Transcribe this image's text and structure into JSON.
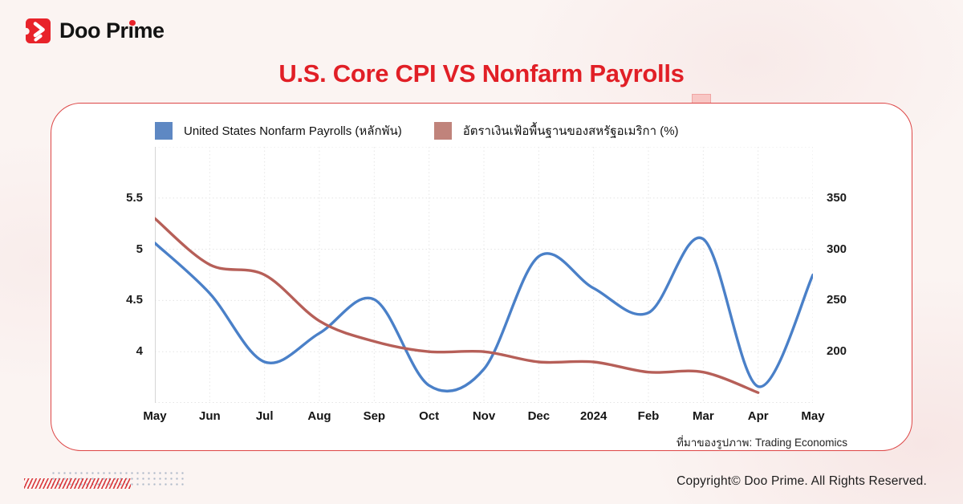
{
  "brand": {
    "name": "Doo Prime"
  },
  "page_title": "U.S. Core CPI  VS Nonfarm Payrolls",
  "theme": {
    "accent_red": "#e11f26",
    "card_border": "#dd4646",
    "tab_pink": "#f8c6c4",
    "nonfarm_blue": "#4a80c8",
    "cpi_red": "#b65f58"
  },
  "legend": {
    "items": [
      {
        "label": "United States Nonfarm Payrolls (หลักพัน)",
        "color": "#5e88c3"
      },
      {
        "label": "อัตราเงินเฟ้อพื้นฐานของสหรัฐอเมริกา (%)",
        "color": "#c0837b"
      }
    ]
  },
  "source_note": "ที่มาของรูปภาพ: Trading Economics",
  "footer": {
    "copyright": "Copyright© Doo Prime. All Rights Reserved."
  },
  "chart_data": {
    "type": "line",
    "title": "U.S. Core CPI  VS Nonfarm Payrolls",
    "categories": [
      "May",
      "Jun",
      "Jul",
      "Aug",
      "Sep",
      "Oct",
      "Nov",
      "Dec",
      "2024",
      "Feb",
      "Mar",
      "Apr",
      "May"
    ],
    "series": [
      {
        "name": "United States Nonfarm Payrolls (หลักพัน)",
        "axis": "right",
        "color": "#4a80c8",
        "values": [
          306,
          257,
          190,
          218,
          251,
          167,
          183,
          293,
          262,
          238,
          310,
          166,
          275
        ]
      },
      {
        "name": "อัตราเงินเฟ้อพื้นฐานของสหรัฐอเมริกา (%)",
        "axis": "left",
        "color": "#b65f58",
        "values": [
          5.3,
          4.85,
          4.75,
          4.3,
          4.1,
          4.0,
          4.0,
          3.9,
          3.9,
          3.8,
          3.8,
          3.6
        ]
      }
    ],
    "left_axis": {
      "ticks": [
        5.5,
        5,
        4.5,
        4
      ]
    },
    "right_axis": {
      "ticks": [
        350,
        300,
        250,
        200
      ]
    },
    "ylim_left": [
      3.5,
      6.0
    ],
    "ylim_right": [
      150,
      400
    ],
    "grid": true,
    "legend_position": "top"
  }
}
